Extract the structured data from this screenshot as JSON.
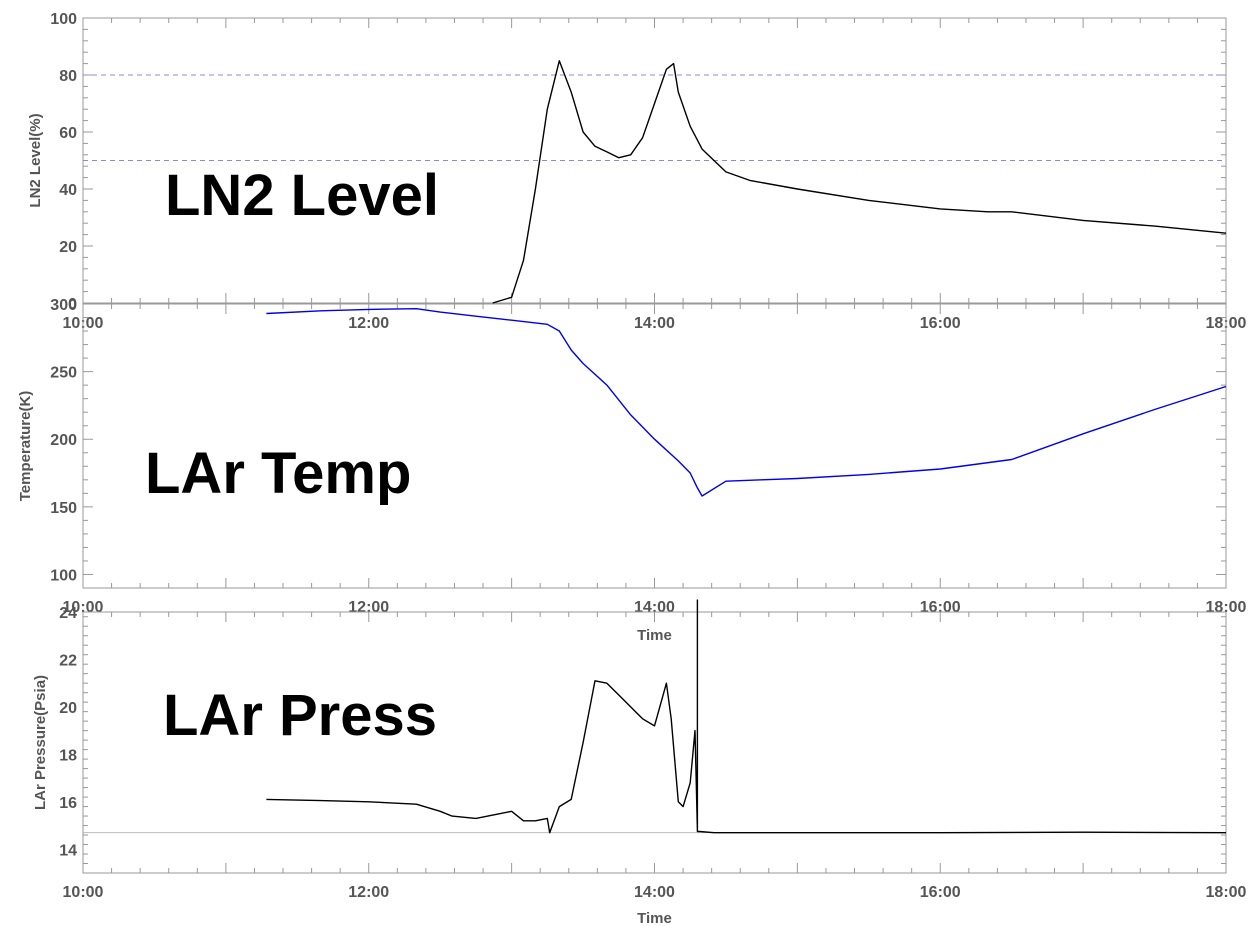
{
  "chart_data": [
    {
      "type": "line",
      "label": "LN2 Level",
      "ylabel": "LN2 Level(%)",
      "xlabel": "",
      "xlim": [
        "10:00",
        "18:00"
      ],
      "ylim": [
        0,
        100
      ],
      "yticks": [
        0,
        20,
        40,
        60,
        80,
        100
      ],
      "xticks": [
        "10:00",
        "12:00",
        "14:00",
        "16:00",
        "18:00"
      ],
      "reference_lines": [
        {
          "y": 80,
          "color": "#8888dd",
          "style": "dashed"
        },
        {
          "y": 50,
          "color": "#8888dd",
          "style": "dashed"
        }
      ],
      "series": [
        {
          "color": "#000000",
          "x": [
            "12:52",
            "13:00",
            "13:05",
            "13:10",
            "13:15",
            "13:20",
            "13:25",
            "13:30",
            "13:35",
            "13:40",
            "13:45",
            "13:50",
            "13:55",
            "14:00",
            "14:05",
            "14:08",
            "14:10",
            "14:15",
            "14:20",
            "14:25",
            "14:30",
            "14:40",
            "15:00",
            "15:30",
            "16:00",
            "16:20",
            "16:30",
            "17:00",
            "17:30",
            "18:00"
          ],
          "values": [
            0,
            2,
            15,
            40,
            68,
            85,
            74,
            60,
            55,
            53,
            51,
            52,
            58,
            70,
            82,
            84,
            74,
            62,
            54,
            50,
            46,
            43,
            40,
            36,
            33,
            32,
            32,
            29,
            27,
            24.5
          ]
        }
      ]
    },
    {
      "type": "line",
      "label": "LAr Temp",
      "ylabel": "Temperature(K)",
      "xlabel": "",
      "xlim": [
        "10:00",
        "18:00"
      ],
      "ylim": [
        90,
        300
      ],
      "yticks": [
        100,
        150,
        200,
        250,
        300
      ],
      "xticks": [
        "10:00",
        "12:00",
        "14:00",
        "16:00",
        "18:00"
      ],
      "series": [
        {
          "color": "#0000ee",
          "x": [
            "11:17",
            "11:40",
            "12:00",
            "12:20",
            "12:30",
            "12:45",
            "13:00",
            "13:15",
            "13:20",
            "13:25",
            "13:30",
            "13:40",
            "13:50",
            "14:00",
            "14:10",
            "14:15",
            "14:18",
            "14:20",
            "14:30",
            "14:45",
            "15:00",
            "15:30",
            "16:00",
            "16:30",
            "17:00",
            "17:30",
            "18:00"
          ],
          "values": [
            293,
            295,
            296,
            296.5,
            294,
            291,
            288,
            285,
            280,
            266,
            256,
            240,
            218,
            200,
            184,
            175,
            164,
            158,
            169,
            170,
            171,
            174,
            178,
            185,
            204,
            222,
            239
          ]
        }
      ]
    },
    {
      "type": "line",
      "label": "LAr Press",
      "ylabel": "LAr Pressure(Psia)",
      "xlabel": "Time",
      "xlim": [
        "10:00",
        "18:00"
      ],
      "ylim": [
        13,
        24
      ],
      "yticks": [
        14,
        16,
        18,
        20,
        22,
        24
      ],
      "xticks": [
        "10:00",
        "12:00",
        "14:00",
        "16:00",
        "18:00"
      ],
      "reference_lines": [
        {
          "y": 14.7,
          "color": "#bbbbbb",
          "style": "solid"
        }
      ],
      "series": [
        {
          "color": "#000000",
          "x": [
            "11:17",
            "11:40",
            "12:00",
            "12:20",
            "12:30",
            "12:35",
            "12:45",
            "12:55",
            "13:00",
            "13:05",
            "13:10",
            "13:15",
            "13:16",
            "13:20",
            "13:25",
            "13:30",
            "13:35",
            "13:40",
            "13:45",
            "13:50",
            "13:55",
            "14:00",
            "14:05",
            "14:07",
            "14:10",
            "14:12",
            "14:15",
            "14:17",
            "14:18",
            "14:18",
            "14:18",
            "14:18",
            "14:19",
            "14:25",
            "15:00",
            "16:00",
            "17:00",
            "18:00"
          ],
          "values": [
            16.1,
            16.05,
            16.0,
            15.9,
            15.6,
            15.4,
            15.3,
            15.5,
            15.6,
            15.2,
            15.2,
            15.3,
            14.7,
            15.8,
            16.1,
            18.5,
            21.1,
            21.0,
            20.5,
            20.0,
            19.5,
            19.2,
            21.0,
            19.5,
            16.0,
            15.8,
            16.8,
            19.0,
            14.8,
            24.5,
            14.75,
            14.75,
            14.75,
            14.7,
            14.7,
            14.7,
            14.72,
            14.7
          ]
        }
      ]
    }
  ],
  "labels": {
    "panel1": "LN2 Level",
    "panel2": "LAr Temp",
    "panel3": "LAr Press"
  }
}
